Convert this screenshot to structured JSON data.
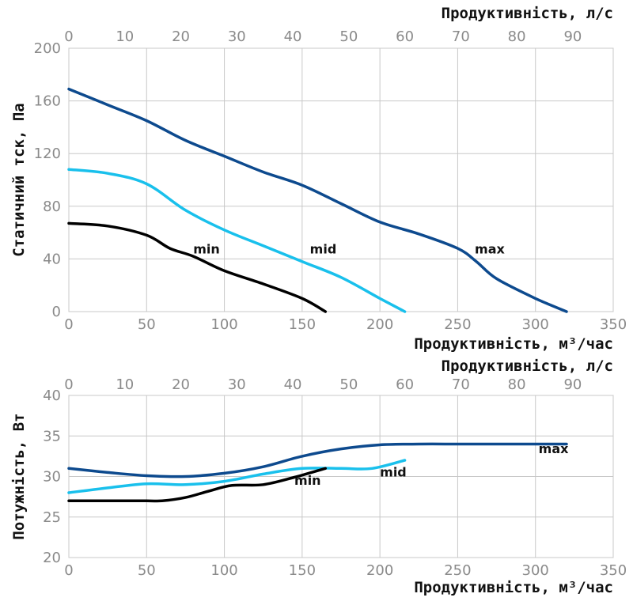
{
  "chart_data": [
    {
      "type": "line",
      "xlabel": "Продуктивність, м³/час",
      "x2label": "Продуктивність, л/с",
      "ylabel": "Статичний тск, Па",
      "xlim": [
        0,
        350
      ],
      "x2lim": [
        0,
        97.2
      ],
      "ylim": [
        0,
        200
      ],
      "xticks": [
        0,
        50,
        100,
        150,
        200,
        250,
        300,
        350
      ],
      "x2ticks": [
        0,
        10,
        20,
        30,
        40,
        50,
        60,
        70,
        80,
        90
      ],
      "yticks": [
        0,
        40,
        80,
        120,
        160,
        200
      ],
      "grid": true,
      "series": [
        {
          "name": "max",
          "color": "#0d4a8e",
          "x": [
            0,
            25,
            50,
            75,
            100,
            125,
            150,
            175,
            200,
            225,
            250,
            262,
            275,
            300,
            320
          ],
          "y": [
            169,
            157,
            145,
            130,
            118,
            106,
            96,
            82,
            68,
            59,
            48,
            38,
            25,
            10,
            0
          ]
        },
        {
          "name": "mid",
          "color": "#19c0ec",
          "x": [
            0,
            25,
            50,
            75,
            100,
            125,
            150,
            175,
            200,
            216
          ],
          "y": [
            108,
            105,
            97,
            77,
            62,
            50,
            38,
            26,
            10,
            0
          ]
        },
        {
          "name": "min",
          "color": "#000000",
          "x": [
            0,
            25,
            50,
            65,
            80,
            100,
            125,
            150,
            165
          ],
          "y": [
            67,
            65,
            58,
            48,
            42,
            31,
            21,
            10,
            0
          ]
        }
      ],
      "labels": [
        {
          "text": "min",
          "x": 80,
          "y": 44
        },
        {
          "text": "mid",
          "x": 155,
          "y": 44
        },
        {
          "text": "max",
          "x": 261,
          "y": 44
        }
      ]
    },
    {
      "type": "line",
      "xlabel": "Продуктивність, м³/час",
      "x2label": "Продуктивність, л/с",
      "ylabel": "Потужність, Вт",
      "xlim": [
        0,
        350
      ],
      "x2lim": [
        0,
        97.2
      ],
      "ylim": [
        20,
        40
      ],
      "xticks": [
        0,
        50,
        100,
        150,
        200,
        250,
        300,
        350
      ],
      "x2ticks": [
        0,
        10,
        20,
        30,
        40,
        50,
        60,
        70,
        80,
        90
      ],
      "yticks": [
        20,
        25,
        30,
        35,
        40
      ],
      "grid": true,
      "series": [
        {
          "name": "max",
          "color": "#0d4a8e",
          "x": [
            0,
            25,
            50,
            75,
            100,
            125,
            150,
            175,
            200,
            225,
            250,
            275,
            300,
            320
          ],
          "y": [
            31,
            30.5,
            30.1,
            30,
            30.4,
            31.2,
            32.5,
            33.4,
            33.9,
            34,
            34,
            34,
            34,
            34
          ]
        },
        {
          "name": "mid",
          "color": "#19c0ec",
          "x": [
            0,
            25,
            50,
            75,
            100,
            125,
            150,
            175,
            195,
            216
          ],
          "y": [
            28,
            28.6,
            29.1,
            29,
            29.4,
            30.3,
            31,
            31,
            31,
            32
          ]
        },
        {
          "name": "min",
          "color": "#000000",
          "x": [
            0,
            25,
            50,
            60,
            75,
            90,
            105,
            125,
            145,
            165
          ],
          "y": [
            27,
            27,
            27,
            27,
            27.4,
            28.2,
            28.9,
            29,
            29.9,
            31
          ]
        }
      ],
      "labels": [
        {
          "text": "min",
          "x": 145,
          "y": 29
        },
        {
          "text": "mid",
          "x": 200,
          "y": 30
        },
        {
          "text": "max",
          "x": 302,
          "y": 32.9
        }
      ]
    }
  ]
}
